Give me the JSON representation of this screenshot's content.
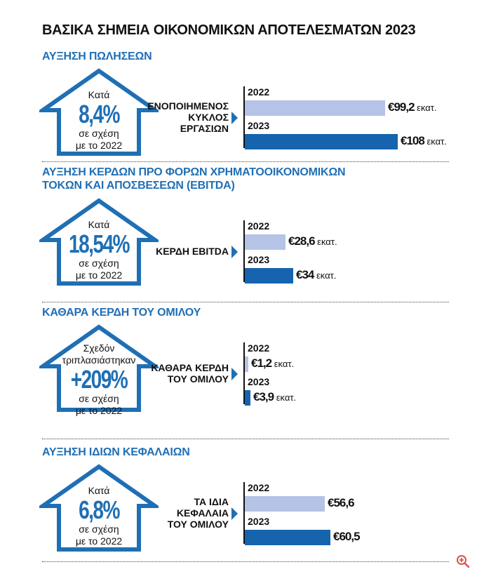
{
  "title": "ΒΑΣΙΚΑ ΣΗΜΕΙΑ ΟΙΚΟΝΟΜΙΚΩΝ ΑΠΟΤΕΛΕΣΜΑΤΩΝ 2023",
  "colors": {
    "accent": "#1f6fb5",
    "bar_2022": "#b4c3e6",
    "bar_2023": "#1564ad"
  },
  "sections": [
    {
      "title": "ΑΥΞΗΣΗ ΠΩΛΗΣΕΩΝ",
      "arrow": {
        "top": "Κατά",
        "big": "8,4%",
        "bottom1": "σε σχέση",
        "bottom2": "με το 2022"
      },
      "label": [
        "ΕΝΟΠΟΙΗΜΕΝΟΣ",
        "ΚΥΚΛΟΣ",
        "ΕΡΓΑΣΙΩΝ"
      ],
      "val_2022": "€99,2",
      "unit_2022": "εκατ.",
      "val_2023": "€108",
      "unit_2023": "εκατ."
    },
    {
      "title": "ΑΥΞΗΣΗ ΚΕΡΔΩΝ ΠΡΟ ΦΟΡΩΝ ΧΡΗΜΑΤΟΟΙΚΟΝΟΜΙΚΩΝ ΤΟΚΩΝ ΚΑΙ ΑΠΟΣΒΕΣΕΩΝ (EBITDA)",
      "title_lines": [
        "ΑΥΞΗΣΗ ΚΕΡΔΩΝ ΠΡΟ ΦΟΡΩΝ ΧΡΗΜΑΤΟΟΙΚΟΝΟΜΙΚΩΝ",
        "ΤΟΚΩΝ ΚΑΙ ΑΠΟΣΒΕΣΕΩΝ (EBITDA)"
      ],
      "arrow": {
        "top": "Κατά",
        "big": "18,54%",
        "bottom1": "σε σχέση",
        "bottom2": "με το 2022"
      },
      "label": [
        "ΚΕΡΔΗ EBITDA"
      ],
      "val_2022": "€28,6",
      "unit_2022": "εκατ.",
      "val_2023": "€34",
      "unit_2023": "εκατ."
    },
    {
      "title": "ΚΑΘΑΡΑ ΚΕΡΔΗ ΤΟΥ ΟΜΙΛΟΥ",
      "arrow": {
        "top": "Σχεδόν",
        "top2": "τριπλασιάστηκαν",
        "big": "+209%",
        "bottom1": "σε σχέση",
        "bottom2": "με το 2022"
      },
      "label": [
        "ΚΑΘΑΡΑ ΚΕΡΔΗ",
        "ΤΟΥ ΟΜΙΛΟΥ"
      ],
      "val_2022": "€1,2",
      "unit_2022": "εκατ.",
      "val_2023": "€3,9",
      "unit_2023": "εκατ."
    },
    {
      "title": "ΑΥΞΗΣΗ ΙΔΙΩΝ ΚΕΦΑΛΑΙΩΝ",
      "arrow": {
        "top": "Κατά",
        "big": "6,8%",
        "bottom1": "σε σχέση",
        "bottom2": "με το 2022"
      },
      "label": [
        "ΤΑ ΙΔΙΑ",
        "ΚΕΦΑΛΑΙΑ",
        "ΤΟΥ ΟΜΙΛΟΥ"
      ],
      "val_2022": "€56,6",
      "unit_2022": "",
      "val_2023": "€60,5",
      "unit_2023": ""
    }
  ],
  "chart_data": [
    {
      "type": "bar",
      "title": "ΑΥΞΗΣΗ ΠΩΛΗΣΕΩΝ",
      "ylabel": "ΕΝΟΠΟΙΗΜΕΝΟΣ ΚΥΚΛΟΣ ΕΡΓΑΣΙΩΝ",
      "categories": [
        "2022",
        "2023"
      ],
      "values": [
        99.2,
        108
      ],
      "unit": "εκατ."
    },
    {
      "type": "bar",
      "title": "ΑΥΞΗΣΗ ΚΕΡΔΩΝ ΠΡΟ ΦΟΡΩΝ ΧΡΗΜΑΤΟΟΙΚΟΝΟΜΙΚΩΝ ΤΟΚΩΝ ΚΑΙ ΑΠΟΣΒΕΣΕΩΝ (EBITDA)",
      "ylabel": "ΚΕΡΔΗ EBITDA",
      "categories": [
        "2022",
        "2023"
      ],
      "values": [
        28.6,
        34
      ],
      "unit": "εκατ."
    },
    {
      "type": "bar",
      "title": "ΚΑΘΑΡΑ ΚΕΡΔΗ ΤΟΥ ΟΜΙΛΟΥ",
      "ylabel": "ΚΑΘΑΡΑ ΚΕΡΔΗ ΤΟΥ ΟΜΙΛΟΥ",
      "categories": [
        "2022",
        "2023"
      ],
      "values": [
        1.2,
        3.9
      ],
      "unit": "εκατ."
    },
    {
      "type": "bar",
      "title": "ΑΥΞΗΣΗ ΙΔΙΩΝ ΚΕΦΑΛΑΙΩΝ",
      "ylabel": "ΤΑ ΙΔΙΑ ΚΕΦΑΛΑΙΑ ΤΟΥ ΟΜΙΛΟΥ",
      "categories": [
        "2022",
        "2023"
      ],
      "values": [
        56.6,
        60.5
      ]
    }
  ]
}
